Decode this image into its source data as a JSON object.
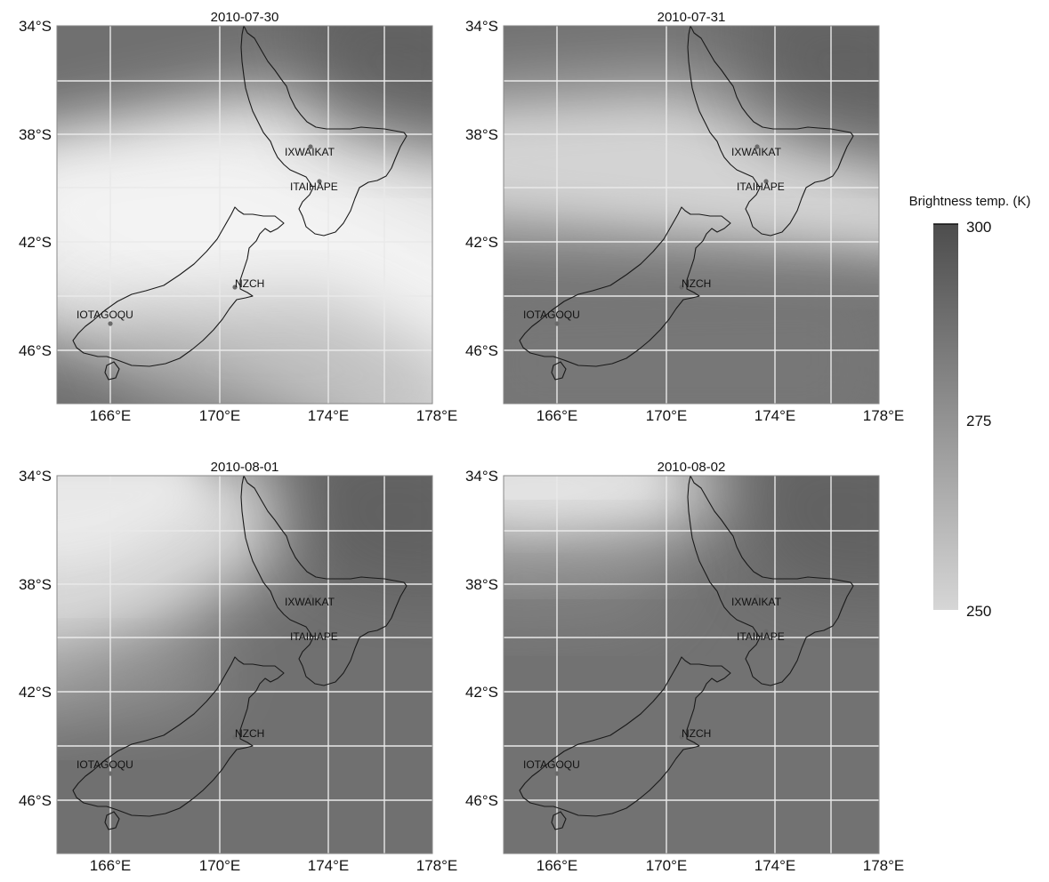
{
  "panels": [
    {
      "date": "2010-07-30",
      "pattern": "band"
    },
    {
      "date": "2010-07-31",
      "pattern": "band-faint"
    },
    {
      "date": "2010-08-01",
      "pattern": "northwest"
    },
    {
      "date": "2010-08-02",
      "pattern": "north"
    }
  ],
  "lat_ticks": [
    "34°S",
    "38°S",
    "42°S",
    "46°S"
  ],
  "lon_ticks": [
    "166°E",
    "170°E",
    "174°E",
    "178°E"
  ],
  "stations": [
    "IXWAIKAT",
    "ITAIHAPE",
    "NZCH",
    "IOTAGOQU"
  ],
  "colorbar": {
    "title": "Brightness temp. (K)",
    "ticks": [
      "300",
      "275",
      "250"
    ],
    "high_color": "#4d4d4d",
    "low_color": "#d6d6d6"
  },
  "colors": {
    "grid": "#e9e9e9",
    "coast": "#1a1a1a",
    "frame": "#888888"
  }
}
